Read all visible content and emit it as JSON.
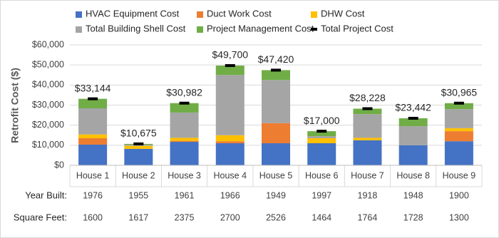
{
  "chart_data": {
    "type": "stacked-bar",
    "y_label": "Retrofit Cost ($)",
    "categories": [
      "House 1",
      "House 2",
      "House 3",
      "House 4",
      "House 5",
      "House 6",
      "House 7",
      "House 8",
      "House 9"
    ],
    "series": [
      {
        "name": "HVAC Equipment Cost",
        "color": "#4472c4",
        "values": [
          10300,
          8200,
          11700,
          11000,
          11000,
          11000,
          12500,
          10000,
          12000
        ]
      },
      {
        "name": "Duct Work Cost",
        "color": "#ed7d31",
        "values": [
          3200,
          0,
          500,
          1000,
          10000,
          0,
          0,
          0,
          5000
        ]
      },
      {
        "name": "DHW Cost",
        "color": "#ffc000",
        "values": [
          1900,
          1500,
          1500,
          3000,
          0,
          2500,
          1200,
          0,
          1500
        ]
      },
      {
        "name": "Total Building Shell Cost",
        "color": "#a5a5a5",
        "values": [
          13000,
          500,
          12600,
          30000,
          21500,
          1000,
          11800,
          9500,
          9500
        ]
      },
      {
        "name": "Project Management Cost",
        "color": "#70ad47",
        "values": [
          4744,
          475,
          4682,
          4700,
          4920,
          2500,
          2728,
          3942,
          2965
        ]
      },
      {
        "name": "Total Project Cost",
        "color": "#000000",
        "kind": "marker",
        "values": [
          33144,
          10675,
          30982,
          49700,
          47420,
          17000,
          28228,
          23442,
          30965
        ],
        "value_labels": [
          "$33,144",
          "$10,675",
          "$30,982",
          "$49,700",
          "$47,420",
          "$17,000",
          "$28,228",
          "$23,442",
          "$30,965"
        ]
      }
    ],
    "ylim": [
      0,
      60000
    ],
    "yticks": [
      {
        "value": 0,
        "label": "$0"
      },
      {
        "value": 10000,
        "label": "$10,000"
      },
      {
        "value": 20000,
        "label": "$20,000"
      },
      {
        "value": 30000,
        "label": "$30,000"
      },
      {
        "value": 40000,
        "label": "$40,000"
      },
      {
        "value": 50000,
        "label": "$50,000"
      },
      {
        "value": 60000,
        "label": "$60,000"
      }
    ],
    "grid": true,
    "legend": "top",
    "table_rows": [
      {
        "label": "Year Built:",
        "values": [
          1976,
          1955,
          1961,
          1966,
          1949,
          1997,
          1918,
          1948,
          1900
        ]
      },
      {
        "label": "Square Feet:",
        "values": [
          1600,
          1617,
          2375,
          2700,
          2526,
          1464,
          1764,
          1728,
          1300
        ]
      }
    ]
  }
}
